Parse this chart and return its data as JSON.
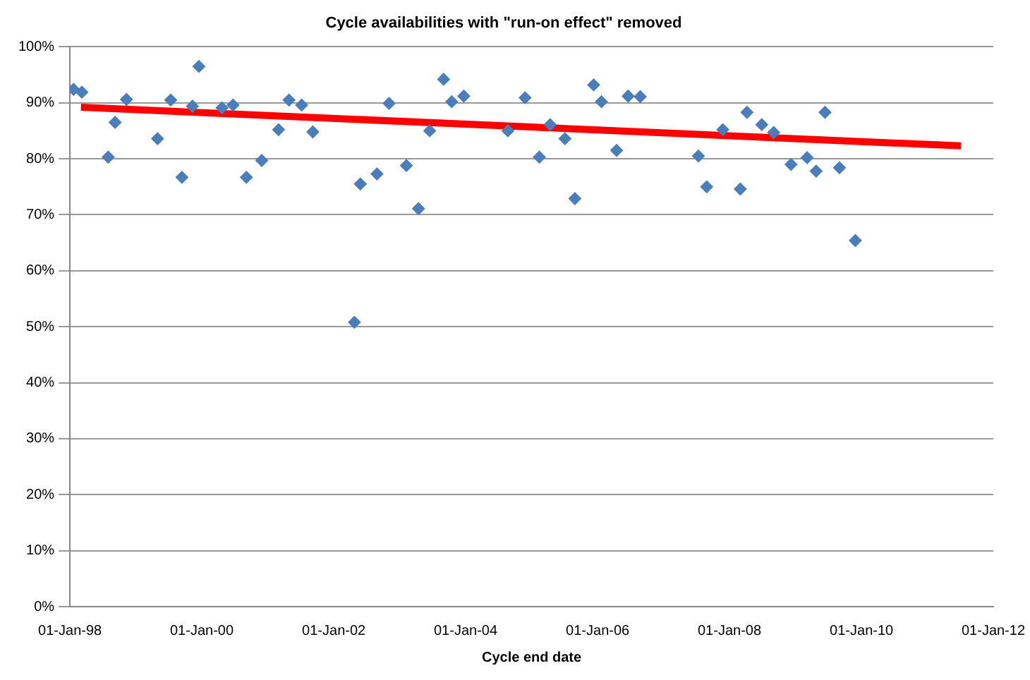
{
  "chart_data": {
    "type": "scatter",
    "title": "Cycle availabilities with \"run-on effect\" removed",
    "xlabel": "Cycle end date",
    "xlim": [
      "1998-01-01",
      "2012-01-01"
    ],
    "xticks": [
      {
        "value": "1998-01-01",
        "label": "01-Jan-98"
      },
      {
        "value": "2000-01-01",
        "label": "01-Jan-00"
      },
      {
        "value": "2002-01-01",
        "label": "01-Jan-02"
      },
      {
        "value": "2004-01-01",
        "label": "01-Jan-04"
      },
      {
        "value": "2006-01-01",
        "label": "01-Jan-06"
      },
      {
        "value": "2008-01-01",
        "label": "01-Jan-08"
      },
      {
        "value": "2010-01-01",
        "label": "01-Jan-10"
      },
      {
        "value": "2012-01-01",
        "label": "01-Jan-12"
      }
    ],
    "ylim": [
      0,
      100
    ],
    "yticks": [
      {
        "value": 0,
        "label": "0%"
      },
      {
        "value": 10,
        "label": "10%"
      },
      {
        "value": 20,
        "label": "20%"
      },
      {
        "value": 30,
        "label": "30%"
      },
      {
        "value": 40,
        "label": "40%"
      },
      {
        "value": 50,
        "label": "50%"
      },
      {
        "value": 60,
        "label": "60%"
      },
      {
        "value": 70,
        "label": "70%"
      },
      {
        "value": 80,
        "label": "80%"
      },
      {
        "value": 90,
        "label": "90%"
      },
      {
        "value": 100,
        "label": "100%"
      }
    ],
    "grid": "y",
    "marker": "diamond",
    "series": [
      {
        "type": "scatter",
        "color": "#4a7ebb",
        "x": [
          "1998-01-21",
          "1998-03-08",
          "1998-08-01",
          "1998-09-08",
          "1998-11-10",
          "1999-05-01",
          "1999-07-13",
          "1999-09-13",
          "1999-11-10",
          "1999-12-16",
          "2000-04-22",
          "2000-06-22",
          "2000-09-04",
          "2000-11-28",
          "2001-03-01",
          "2001-04-28",
          "2001-07-07",
          "2001-09-07",
          "2002-04-25",
          "2002-05-28",
          "2002-08-28",
          "2002-11-03",
          "2003-02-07",
          "2003-04-15",
          "2003-06-16",
          "2003-09-01",
          "2003-10-16",
          "2003-12-22",
          "2004-08-22",
          "2004-11-25",
          "2005-02-12",
          "2005-04-13",
          "2005-07-04",
          "2005-08-28",
          "2005-12-10",
          "2006-01-22",
          "2006-04-16",
          "2006-06-19",
          "2006-08-25",
          "2007-07-13",
          "2007-08-28",
          "2007-11-25",
          "2008-03-01",
          "2008-04-07",
          "2008-06-28",
          "2008-09-02",
          "2008-12-07",
          "2009-03-06",
          "2009-04-25",
          "2009-06-13",
          "2009-09-01",
          "2009-11-28"
        ],
        "values": [
          92.4,
          91.9,
          80.3,
          86.5,
          90.6,
          83.6,
          90.5,
          76.7,
          89.4,
          96.5,
          89.1,
          89.6,
          76.7,
          79.7,
          85.2,
          90.5,
          89.6,
          84.8,
          50.8,
          75.5,
          77.3,
          89.9,
          78.8,
          71.1,
          85.0,
          94.2,
          90.2,
          91.2,
          85.0,
          90.9,
          80.3,
          86.1,
          83.6,
          72.9,
          93.2,
          90.2,
          81.5,
          91.2,
          91.1,
          80.5,
          75.0,
          85.2,
          74.6,
          88.3,
          86.1,
          84.7,
          79.0,
          80.2,
          77.8,
          88.3,
          78.4,
          65.4
        ]
      },
      {
        "type": "line",
        "color": "#ff0000",
        "marker": "none",
        "x": [
          "1998-03-03",
          "2011-07-06"
        ],
        "values": [
          89.2,
          82.3
        ]
      }
    ]
  }
}
